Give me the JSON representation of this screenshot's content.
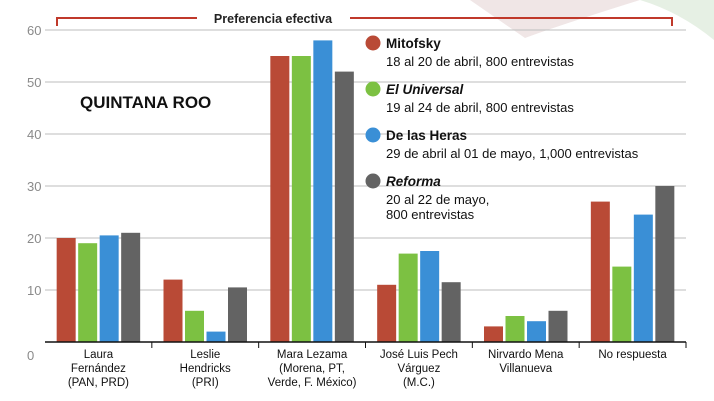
{
  "chart_data": {
    "type": "bar",
    "title": "Preferencia efectiva",
    "annotation": "QUINTANA ROO",
    "ylim": [
      0,
      60
    ],
    "yticks": [
      0,
      10,
      20,
      30,
      40,
      50,
      60
    ],
    "categories": [
      [
        "Laura",
        "Fernández",
        "(PAN, PRD)"
      ],
      [
        "Leslie",
        "Hendricks",
        "(PRI)"
      ],
      [
        "Mara Lezama",
        "(Morena, PT,",
        "Verde, F. México)"
      ],
      [
        "José Luis Pech",
        "Várguez",
        "(M.C.)"
      ],
      [
        "Nirvardo Mena",
        "Villanueva"
      ],
      [
        "No respuesta"
      ]
    ],
    "series": [
      {
        "name": "Mitofsky",
        "italic": false,
        "desc": [
          "18 al 20 de abril, 800 entrevistas"
        ],
        "color": "#b94a36",
        "values": [
          20,
          12,
          55,
          11,
          3,
          27
        ]
      },
      {
        "name": "El Universal",
        "italic": true,
        "desc": [
          "19 al 24 de abril, 800 entrevistas"
        ],
        "color": "#7cc142",
        "values": [
          19,
          6,
          55,
          17,
          5,
          14.5
        ]
      },
      {
        "name": "De las Heras",
        "italic": false,
        "desc": [
          "29 de abril al 01 de mayo, 1,000 entrevistas"
        ],
        "color": "#3a8fd6",
        "values": [
          20.5,
          2,
          58,
          17.5,
          4,
          24.5
        ]
      },
      {
        "name": "Reforma",
        "italic": true,
        "desc": [
          "20 al 22 de mayo,",
          "800 entrevistas"
        ],
        "color": "#636363",
        "values": [
          21,
          10.5,
          52,
          11.5,
          6,
          30
        ]
      }
    ]
  }
}
